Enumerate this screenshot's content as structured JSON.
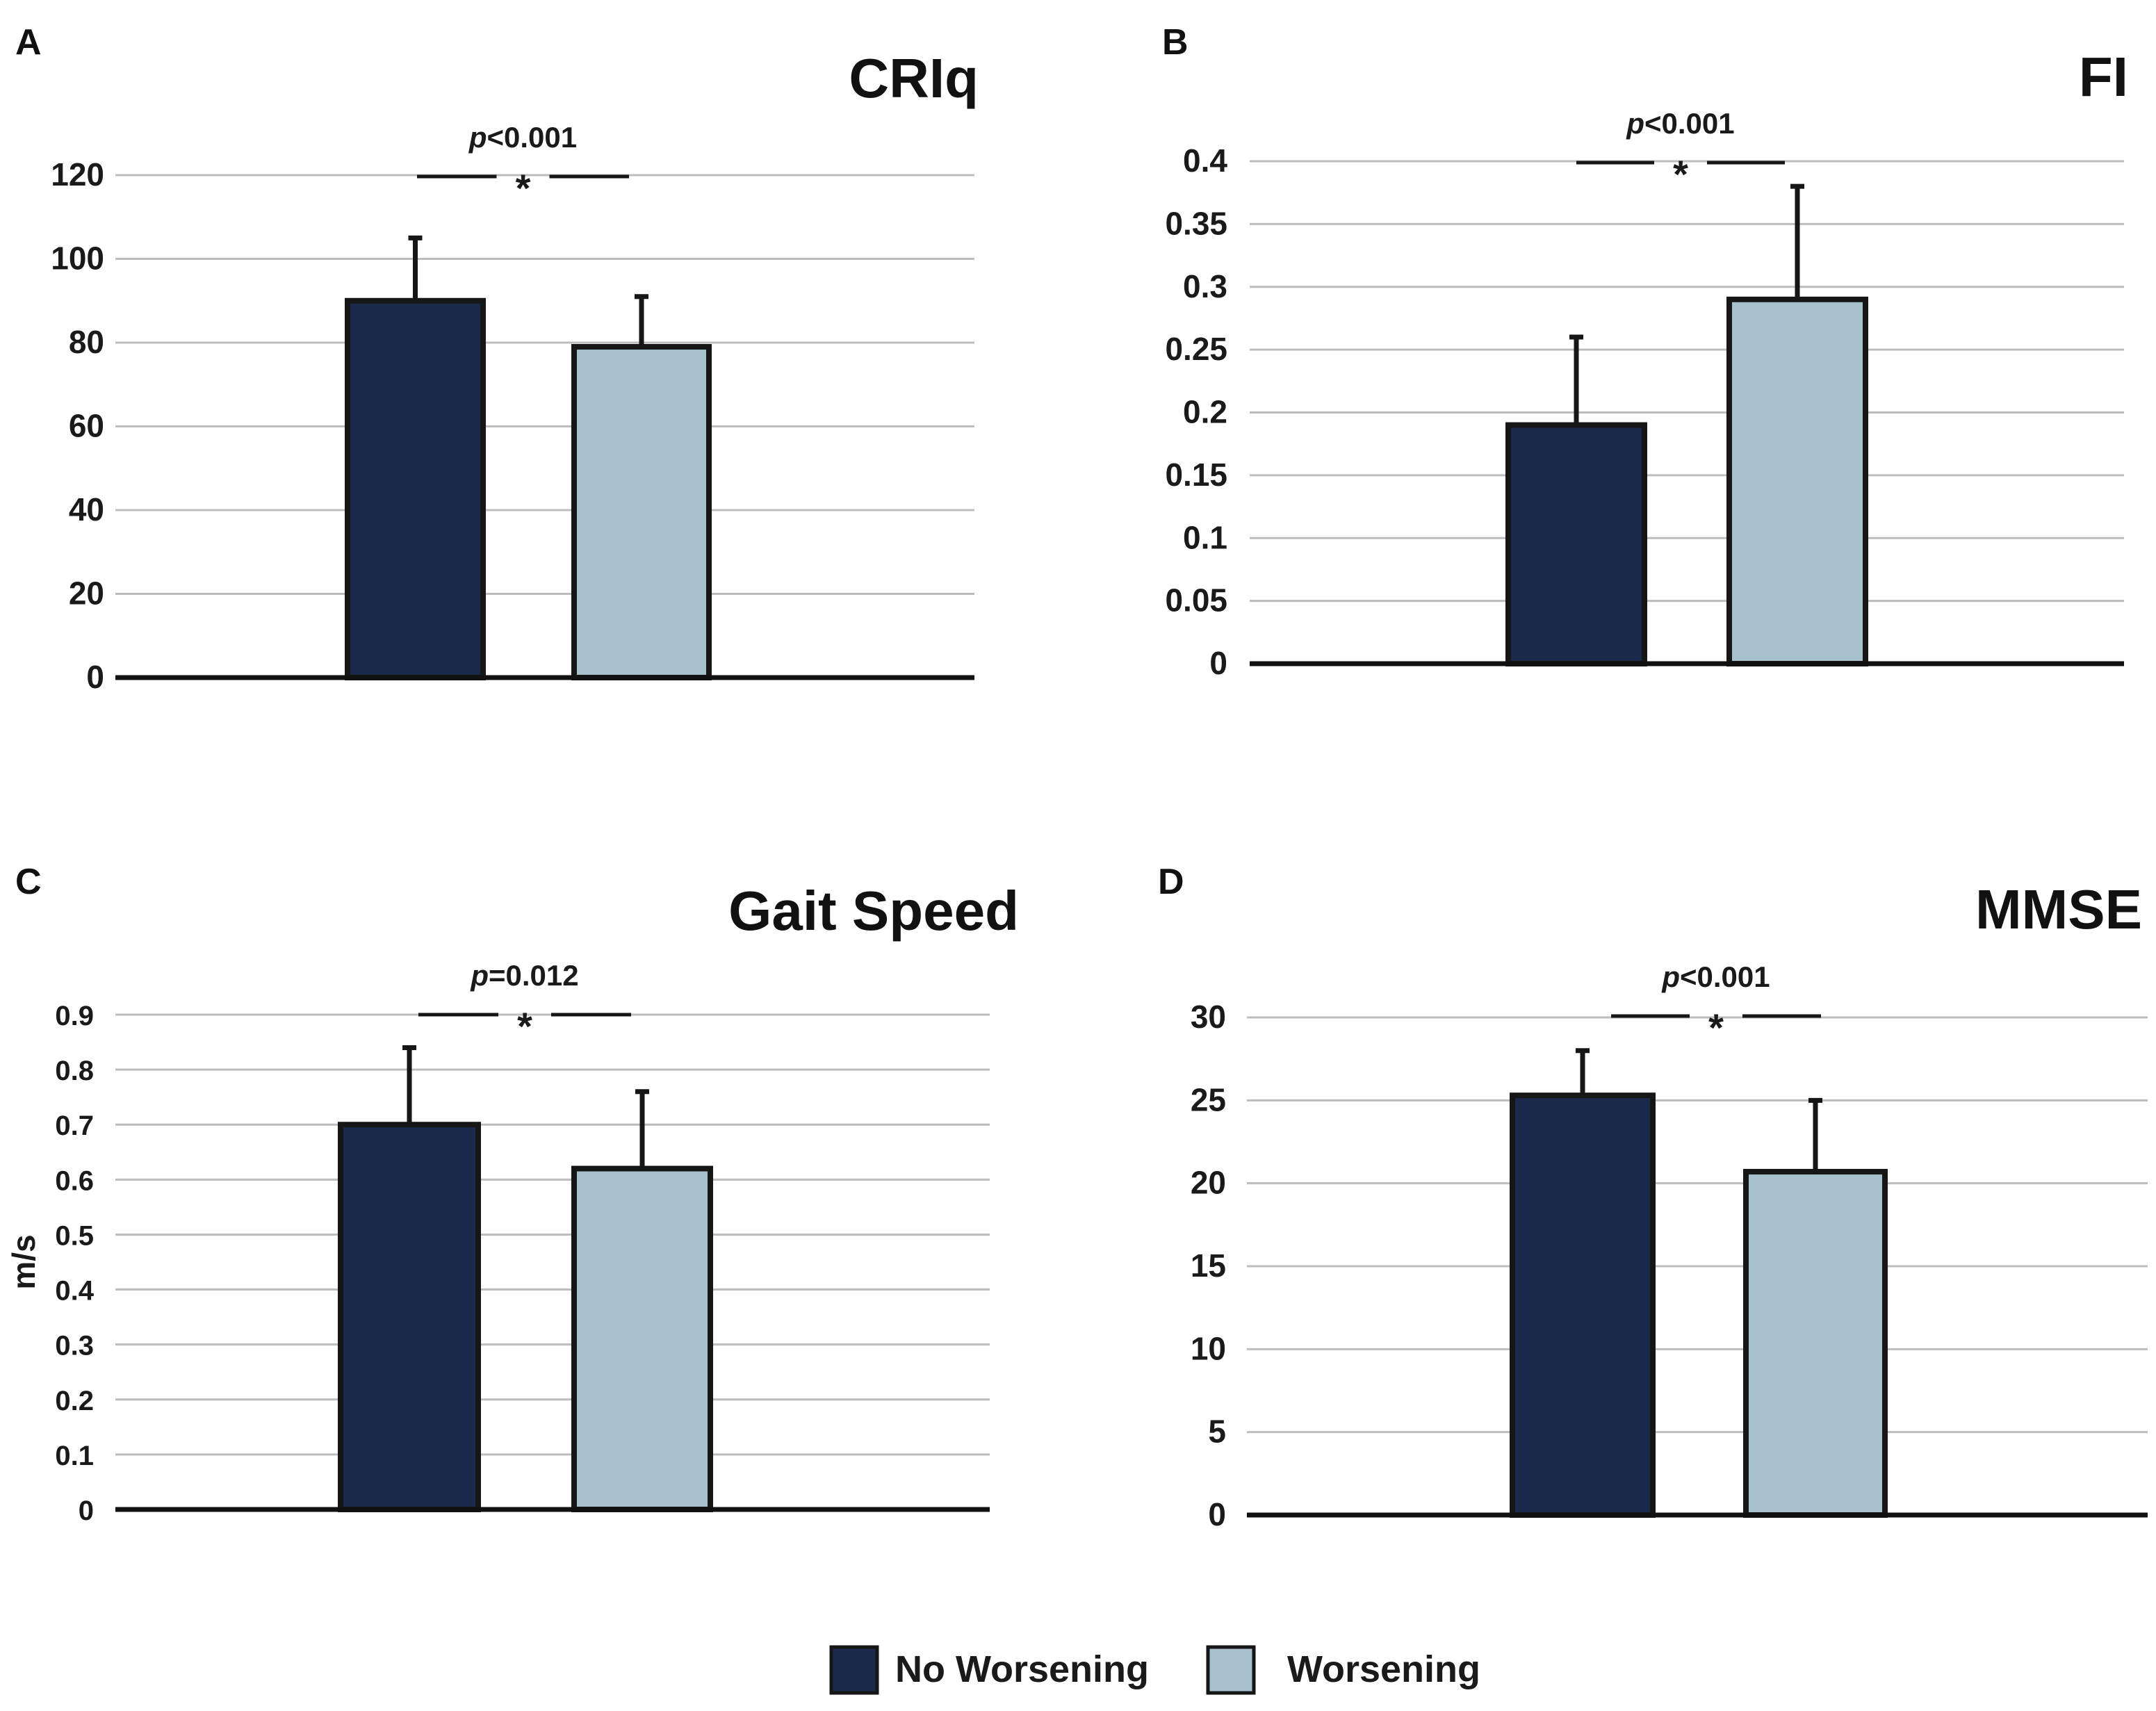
{
  "legend": {
    "items": [
      {
        "label": "No Worsening",
        "color": "#1b2a4a"
      },
      {
        "label": "Worsening",
        "color": "#a6c1cb"
      }
    ]
  },
  "chart_data": [
    {
      "panel": "A",
      "type": "bar",
      "title": "CRIq",
      "xlabel": "",
      "ylabel": "",
      "categories": [
        "No Worsening",
        "Worsening"
      ],
      "values": [
        90,
        79
      ],
      "errors": [
        15,
        12
      ],
      "ylim": [
        0,
        120
      ],
      "yticks": [
        0,
        20,
        40,
        60,
        80,
        100,
        120
      ],
      "ytick_labels": [
        "0",
        "20",
        "40",
        "60",
        "80",
        "100",
        "120"
      ],
      "grid": true,
      "significance": {
        "p_prefix": "p",
        "p_text": "<0.001",
        "marker": "*"
      }
    },
    {
      "panel": "B",
      "type": "bar",
      "title": "FI",
      "xlabel": "",
      "ylabel": "",
      "categories": [
        "No Worsening",
        "Worsening"
      ],
      "values": [
        0.19,
        0.29
      ],
      "errors": [
        0.07,
        0.09
      ],
      "ylim": [
        0,
        0.4
      ],
      "yticks": [
        0,
        0.05,
        0.1,
        0.15,
        0.2,
        0.25,
        0.3,
        0.35,
        0.4
      ],
      "ytick_labels": [
        "0",
        "0.05",
        "0.1",
        "0.15",
        "0.2",
        "0.25",
        "0.3",
        "0.35",
        "0.4"
      ],
      "grid": true,
      "significance": {
        "p_prefix": "p",
        "p_text": "<0.001",
        "marker": "*"
      }
    },
    {
      "panel": "C",
      "type": "bar",
      "title": "Gait Speed",
      "xlabel": "",
      "ylabel": "m/s",
      "categories": [
        "No Worsening",
        "Worsening"
      ],
      "values": [
        0.7,
        0.62
      ],
      "errors": [
        0.14,
        0.14
      ],
      "ylim": [
        0,
        0.9
      ],
      "yticks": [
        0,
        0.1,
        0.2,
        0.3,
        0.4,
        0.5,
        0.6,
        0.7,
        0.8,
        0.9
      ],
      "ytick_labels": [
        "0",
        "0.1",
        "0.2",
        "0.3",
        "0.4",
        "0.5",
        "0.6",
        "0.7",
        "0.8",
        "0.9"
      ],
      "grid": true,
      "significance": {
        "p_prefix": "p",
        "p_text": "=0.012",
        "marker": "*"
      }
    },
    {
      "panel": "D",
      "type": "bar",
      "title": "MMSE",
      "xlabel": "",
      "ylabel": "",
      "categories": [
        "No Worsening",
        "Worsening"
      ],
      "values": [
        25.3,
        20.7
      ],
      "errors": [
        2.7,
        4.3
      ],
      "ylim": [
        0,
        30
      ],
      "yticks": [
        0,
        5,
        10,
        15,
        20,
        25,
        30
      ],
      "ytick_labels": [
        "0",
        "5",
        "10",
        "15",
        "20",
        "25",
        "30"
      ],
      "grid": true,
      "significance": {
        "p_prefix": "p",
        "p_text": "<0.001",
        "marker": "*"
      }
    }
  ]
}
